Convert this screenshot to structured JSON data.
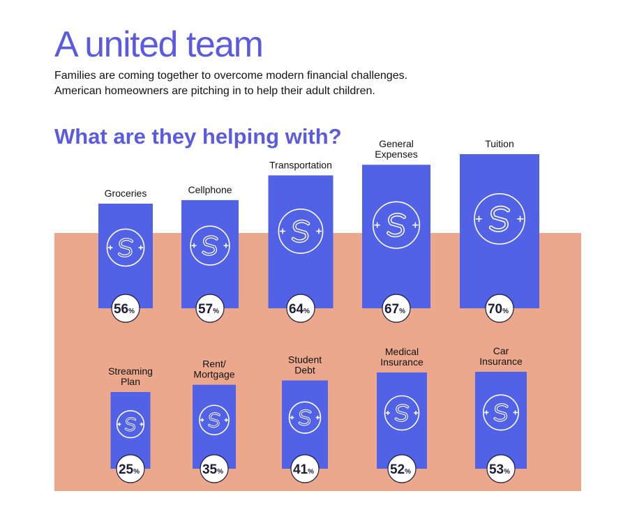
{
  "header": {
    "title": "A united team",
    "intro_line_1": "Families are coming together to overcome modern financial challenges.",
    "intro_line_2": "American homeowners are pitching in to help their adult children.",
    "subtitle": "What are they helping with?"
  },
  "colors": {
    "title": "#5b5be0",
    "bar": "#5262e6",
    "panel": "#eba88d",
    "badge_text": "#1b1b3a",
    "icon_line": "#ffffff"
  },
  "icon": "dollar-circle-icon",
  "chart_data": [
    {
      "type": "bar",
      "title": "What are they helping with?",
      "unit": "%",
      "categories": [
        "Groceries",
        "Cellphone",
        "Transportation",
        "General Expenses",
        "Tuition"
      ],
      "label_lines": [
        [
          "Groceries"
        ],
        [
          "Cellphone"
        ],
        [
          "Transportation"
        ],
        [
          "General",
          "Expenses"
        ],
        [
          "Tuition"
        ]
      ],
      "values": [
        56,
        57,
        64,
        67,
        70
      ]
    },
    {
      "type": "bar",
      "title": "",
      "unit": "%",
      "categories": [
        "Streaming Plan",
        "Rent/ Mortgage",
        "Student Debt",
        "Medical Insurance",
        "Car Insurance"
      ],
      "label_lines": [
        [
          "Streaming",
          "Plan"
        ],
        [
          "Rent/",
          "Mortgage"
        ],
        [
          "Student",
          "Debt"
        ],
        [
          "Medical",
          "Insurance"
        ],
        [
          "Car",
          "Insurance"
        ]
      ],
      "values": [
        25,
        35,
        41,
        52,
        53
      ]
    }
  ]
}
